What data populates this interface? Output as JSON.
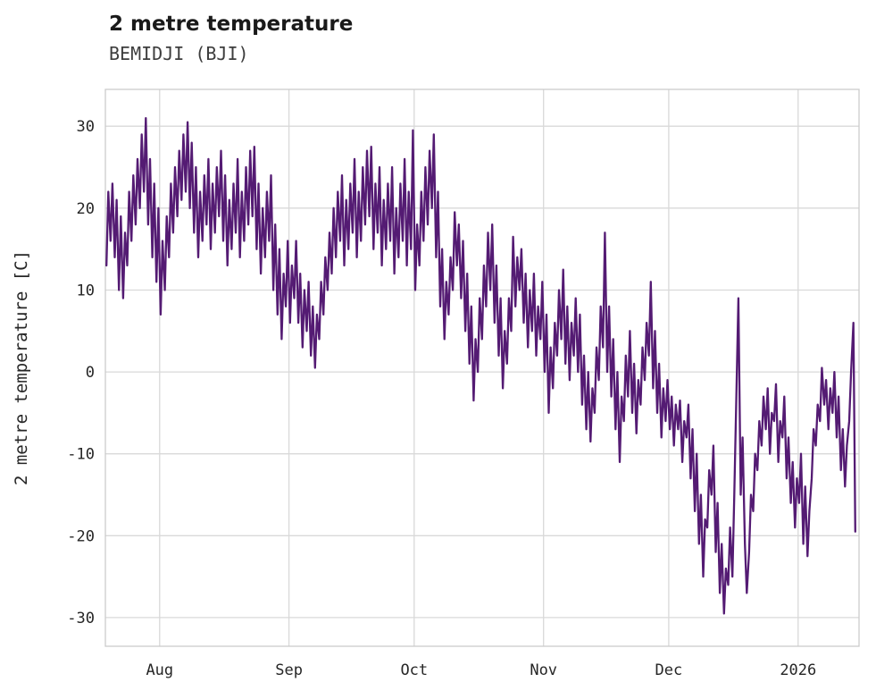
{
  "chart_data": {
    "type": "line",
    "title": "2 metre temperature",
    "subtitle": "BEMIDJI (BJI)",
    "station": "BEMIDJI (BJI)",
    "ylabel": "2 metre temperature [C]",
    "xlabel": "",
    "line_color": "#541b73",
    "grid_color": "#d9d9d9",
    "spine_color": "#cccccc",
    "background": "#ffffff",
    "ylim": [
      -33.5,
      34.5
    ],
    "yticks": [
      -30,
      -20,
      -10,
      0,
      10,
      20,
      30
    ],
    "x_unit": "days since Aug 1",
    "xlim_days": [
      -13,
      167.6
    ],
    "xticks": [
      {
        "label": "Aug",
        "day": 0
      },
      {
        "label": "Sep",
        "day": 31
      },
      {
        "label": "Oct",
        "day": 61
      },
      {
        "label": "Nov",
        "day": 92
      },
      {
        "label": "Dec",
        "day": 122
      },
      {
        "label": "2026",
        "day": 153
      }
    ],
    "series": [
      {
        "name": "2 metre temperature",
        "note": "values are [day, morning-low C, afternoon-high C] drawn chronologically",
        "values": [
          [
            -13,
            13,
            22
          ],
          [
            -12,
            16,
            23
          ],
          [
            -11,
            14,
            21
          ],
          [
            -10,
            10,
            19
          ],
          [
            -9,
            9,
            17
          ],
          [
            -8,
            13,
            22
          ],
          [
            -7,
            16,
            24
          ],
          [
            -6,
            18,
            26
          ],
          [
            -5,
            20,
            29
          ],
          [
            -4,
            22,
            31
          ],
          [
            -3,
            18,
            26
          ],
          [
            -2,
            14,
            23
          ],
          [
            -1,
            11,
            20
          ],
          [
            0,
            7,
            16
          ],
          [
            1,
            10,
            19
          ],
          [
            2,
            14,
            23
          ],
          [
            3,
            17,
            25
          ],
          [
            4,
            19,
            27
          ],
          [
            5,
            21,
            29
          ],
          [
            6,
            22,
            30.5
          ],
          [
            7,
            20,
            28
          ],
          [
            8,
            17,
            25
          ],
          [
            9,
            14,
            22
          ],
          [
            10,
            16,
            24
          ],
          [
            11,
            18,
            26
          ],
          [
            12,
            15,
            23
          ],
          [
            13,
            17,
            25
          ],
          [
            14,
            19,
            27
          ],
          [
            15,
            16,
            24
          ],
          [
            16,
            13,
            21
          ],
          [
            17,
            15,
            23
          ],
          [
            18,
            17,
            26
          ],
          [
            19,
            14,
            22
          ],
          [
            20,
            16,
            25
          ],
          [
            21,
            18,
            27
          ],
          [
            22,
            19,
            27.5
          ],
          [
            23,
            15,
            23
          ],
          [
            24,
            12,
            20
          ],
          [
            25,
            14,
            22
          ],
          [
            26,
            16,
            24
          ],
          [
            27,
            10,
            18
          ],
          [
            28,
            7,
            15
          ],
          [
            29,
            4,
            12
          ],
          [
            30,
            8,
            16
          ],
          [
            31,
            6,
            13
          ],
          [
            32,
            9,
            16
          ],
          [
            33,
            6,
            12
          ],
          [
            34,
            3,
            10
          ],
          [
            35,
            5,
            11
          ],
          [
            36,
            2,
            8
          ],
          [
            37,
            0.5,
            7
          ],
          [
            38,
            4,
            11
          ],
          [
            39,
            7,
            14
          ],
          [
            40,
            10,
            17
          ],
          [
            41,
            12,
            20
          ],
          [
            42,
            14,
            22
          ],
          [
            43,
            16,
            24
          ],
          [
            44,
            13,
            21
          ],
          [
            45,
            15,
            23
          ],
          [
            46,
            17,
            26
          ],
          [
            47,
            14,
            22
          ],
          [
            48,
            16,
            25
          ],
          [
            49,
            18,
            27
          ],
          [
            50,
            19,
            27.5
          ],
          [
            51,
            15,
            23
          ],
          [
            52,
            17,
            25
          ],
          [
            53,
            13,
            21
          ],
          [
            54,
            15,
            23
          ],
          [
            55,
            16,
            25
          ],
          [
            56,
            12,
            20
          ],
          [
            57,
            14,
            23
          ],
          [
            58,
            16,
            26
          ],
          [
            59,
            13,
            22
          ],
          [
            60,
            15,
            29.5
          ],
          [
            61,
            10,
            18
          ],
          [
            62,
            13,
            22
          ],
          [
            63,
            16,
            25
          ],
          [
            64,
            18,
            27
          ],
          [
            65,
            20,
            29
          ],
          [
            66,
            14,
            22
          ],
          [
            67,
            8,
            15
          ],
          [
            68,
            4,
            11
          ],
          [
            69,
            7,
            14
          ],
          [
            70,
            10,
            19.5
          ],
          [
            71,
            13,
            18
          ],
          [
            72,
            9,
            16
          ],
          [
            73,
            5,
            12
          ],
          [
            74,
            1,
            8
          ],
          [
            75,
            -3.5,
            4
          ],
          [
            76,
            0,
            9
          ],
          [
            77,
            4,
            13
          ],
          [
            78,
            8,
            17
          ],
          [
            79,
            10,
            18
          ],
          [
            80,
            6,
            13
          ],
          [
            81,
            2,
            9
          ],
          [
            82,
            -2,
            5
          ],
          [
            83,
            1,
            9
          ],
          [
            84,
            5,
            16.5
          ],
          [
            85,
            8,
            14
          ],
          [
            86,
            10,
            15
          ],
          [
            87,
            6,
            12
          ],
          [
            88,
            3,
            10
          ],
          [
            89,
            5,
            12
          ],
          [
            90,
            2,
            8
          ],
          [
            91,
            4,
            11
          ],
          [
            92,
            0,
            7
          ],
          [
            93,
            -5,
            3
          ],
          [
            94,
            -2,
            6
          ],
          [
            95,
            2,
            10
          ],
          [
            96,
            4,
            12.5
          ],
          [
            97,
            1,
            8
          ],
          [
            98,
            -1,
            6
          ],
          [
            99,
            2,
            9
          ],
          [
            100,
            0,
            7
          ],
          [
            101,
            -4,
            2
          ],
          [
            102,
            -7,
            0
          ],
          [
            103,
            -8.5,
            -2
          ],
          [
            104,
            -5,
            3
          ],
          [
            105,
            -1,
            8
          ],
          [
            106,
            3,
            17
          ],
          [
            107,
            0,
            8
          ],
          [
            108,
            -3,
            4
          ],
          [
            109,
            -7,
            0
          ],
          [
            110,
            -11,
            -3
          ],
          [
            111,
            -6,
            2
          ],
          [
            112,
            -3,
            5
          ],
          [
            113,
            -5,
            1
          ],
          [
            114,
            -7.5,
            -1
          ],
          [
            115,
            -4,
            3
          ],
          [
            116,
            -1,
            6
          ],
          [
            117,
            2,
            11
          ],
          [
            118,
            -2,
            5
          ],
          [
            119,
            -5,
            1
          ],
          [
            120,
            -8,
            -2
          ],
          [
            121,
            -6,
            -1
          ],
          [
            122,
            -7,
            -3
          ],
          [
            123,
            -9,
            -4
          ],
          [
            124,
            -7,
            -3.5
          ],
          [
            125,
            -11,
            -6
          ],
          [
            126,
            -8,
            -4
          ],
          [
            127,
            -13,
            -7
          ],
          [
            128,
            -17,
            -10
          ],
          [
            129,
            -21,
            -15
          ],
          [
            130,
            -25,
            -18
          ],
          [
            131,
            -19,
            -12
          ],
          [
            132,
            -15,
            -9
          ],
          [
            133,
            -22,
            -16
          ],
          [
            134,
            -27,
            -21
          ],
          [
            135,
            -29.5,
            -24
          ],
          [
            136,
            -26,
            -19
          ],
          [
            137,
            -25,
            -15
          ],
          [
            138,
            -2,
            9
          ],
          [
            139,
            -15,
            -8
          ],
          [
            140,
            -21,
            -27
          ],
          [
            141,
            -22,
            -15
          ],
          [
            142,
            -17,
            -10
          ],
          [
            143,
            -12,
            -6
          ],
          [
            144,
            -9,
            -3
          ],
          [
            145,
            -7,
            -2
          ],
          [
            146,
            -10,
            -5
          ],
          [
            147,
            -6,
            -1.5
          ],
          [
            148,
            -11,
            -6
          ],
          [
            149,
            -8,
            -3
          ],
          [
            150,
            -13,
            -8
          ],
          [
            151,
            -16,
            -11
          ],
          [
            152,
            -19,
            -13
          ],
          [
            153,
            -16,
            -10
          ],
          [
            154,
            -21,
            -14
          ],
          [
            155,
            -22.5,
            -17
          ],
          [
            156,
            -13,
            -7
          ],
          [
            157,
            -9,
            -4
          ],
          [
            158,
            -6,
            0.5
          ],
          [
            159,
            -4,
            -1
          ],
          [
            160,
            -7,
            -2
          ],
          [
            161,
            -5,
            0
          ],
          [
            162,
            -8,
            -3
          ],
          [
            163,
            -12,
            -7
          ],
          [
            164,
            -14,
            -9
          ],
          [
            165,
            -6,
            0
          ],
          [
            166,
            6,
            -19.5
          ]
        ]
      }
    ]
  }
}
